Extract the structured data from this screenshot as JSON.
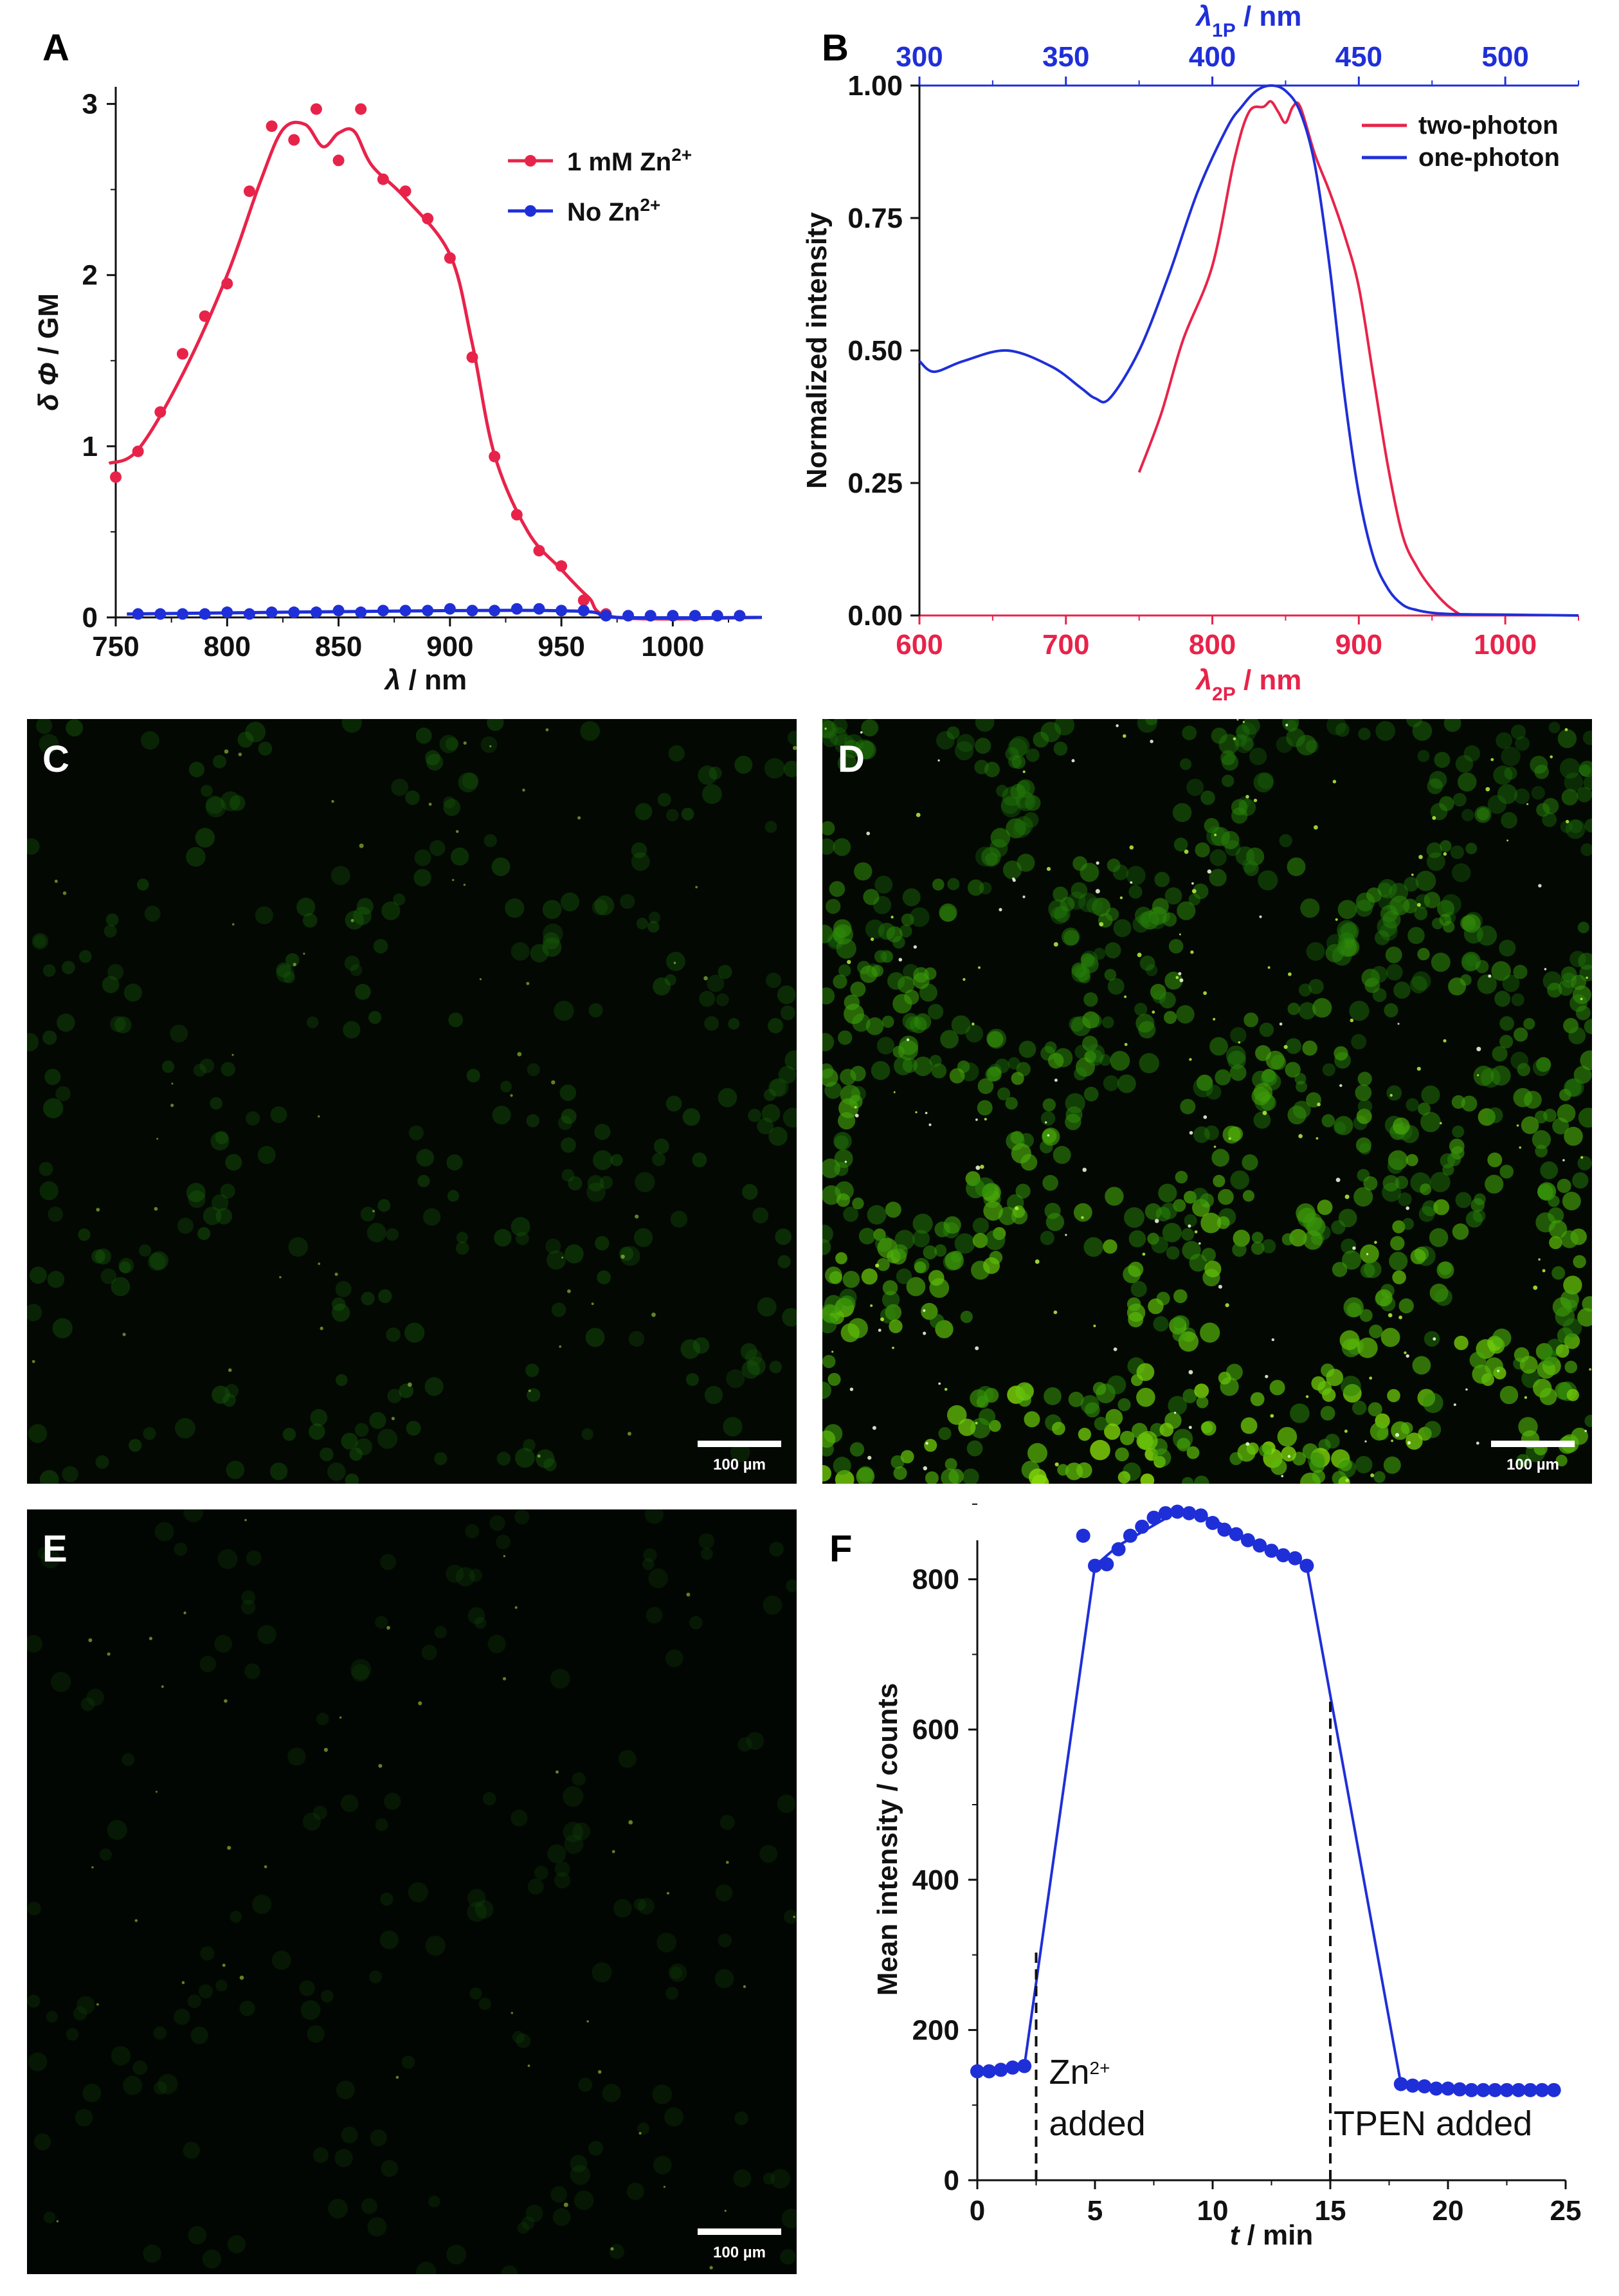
{
  "colors": {
    "red": "#e8234a",
    "blue": "#1f2fd8",
    "black": "#111111",
    "micro_bg": "#040a02",
    "micro_green": "#6fd61c",
    "micro_green_bright": "#b4f03a"
  },
  "panels": {
    "A": "A",
    "B": "B",
    "C": "C",
    "D": "D",
    "E": "E",
    "F": "F"
  },
  "micro": {
    "C": {
      "scale_label": "100 µm",
      "brightness": 0.25
    },
    "D": {
      "scale_label": "100 µm",
      "brightness": 0.85
    },
    "E": {
      "scale_label": "100 µm",
      "brightness": 0.04
    }
  },
  "chart_data": [
    {
      "id": "A",
      "type": "line",
      "xlabel": "λ / nm",
      "ylabel": "δ Φ / GM",
      "xlim": [
        750,
        1040
      ],
      "ylim": [
        0,
        3.1
      ],
      "xticks": [
        750,
        800,
        850,
        900,
        950,
        1000
      ],
      "xtick_labels": [
        "750",
        "800",
        "850",
        "900",
        "950",
        "1000"
      ],
      "yticks": [
        0,
        1,
        2,
        3
      ],
      "ytick_labels": [
        "0",
        "1",
        "2",
        "3"
      ],
      "legend_position": "top-right",
      "series": [
        {
          "name": "1 mM Zn2+",
          "legend_main": "1 mM Zn",
          "legend_sup": "2+",
          "color": "#e8234a",
          "x": [
            750,
            760,
            770,
            780,
            790,
            800,
            810,
            820,
            830,
            840,
            850,
            860,
            870,
            880,
            890,
            900,
            910,
            920,
            930,
            940,
            950,
            960,
            970,
            980,
            990,
            1000,
            1010,
            1020,
            1030
          ],
          "values": [
            0.82,
            0.97,
            1.2,
            1.54,
            1.76,
            1.95,
            2.49,
            2.87,
            2.79,
            2.97,
            2.67,
            2.97,
            2.56,
            2.49,
            2.33,
            2.1,
            1.52,
            0.94,
            0.6,
            0.39,
            0.3,
            0.1,
            0.02,
            0.01,
            0.01,
            0.01,
            0.01,
            0.01,
            0.01
          ],
          "fit_x": [
            747,
            760,
            780,
            800,
            815,
            825,
            835,
            843,
            850,
            857,
            865,
            880,
            900,
            910,
            920,
            935,
            950,
            962,
            975,
            1040
          ],
          "fit_y": [
            0.9,
            0.98,
            1.42,
            2.0,
            2.55,
            2.85,
            2.88,
            2.75,
            2.83,
            2.84,
            2.64,
            2.45,
            2.12,
            1.6,
            0.95,
            0.5,
            0.28,
            0.12,
            0.0,
            0.0
          ]
        },
        {
          "name": "No Zn2+",
          "legend_main": "No Zn",
          "legend_sup": "2+",
          "color": "#1f2fd8",
          "x": [
            760,
            770,
            780,
            790,
            800,
            810,
            820,
            830,
            840,
            850,
            860,
            870,
            880,
            890,
            900,
            910,
            920,
            930,
            940,
            950,
            960,
            970,
            980,
            990,
            1000,
            1010,
            1020,
            1030
          ],
          "values": [
            0.02,
            0.02,
            0.02,
            0.02,
            0.03,
            0.02,
            0.03,
            0.03,
            0.03,
            0.04,
            0.03,
            0.04,
            0.04,
            0.04,
            0.05,
            0.04,
            0.04,
            0.05,
            0.05,
            0.04,
            0.04,
            0.01,
            0.01,
            0.01,
            0.01,
            0.01,
            0.01,
            0.01
          ],
          "fit_x": [
            755,
            900,
            960,
            975,
            1040
          ],
          "fit_y": [
            0.02,
            0.04,
            0.035,
            0.0,
            0.0
          ]
        }
      ]
    },
    {
      "id": "B",
      "type": "line",
      "xlabel_bottom_main": "λ",
      "xlabel_bottom_sub": "2P",
      "xlabel_bottom_rest": " / nm",
      "xlabel_top_main": "λ",
      "xlabel_top_sub": "1P",
      "xlabel_top_rest": " / nm",
      "ylabel": "Normalized intensity",
      "xlim_bottom": [
        600,
        1050
      ],
      "xlim_top": [
        300,
        525
      ],
      "ylim": [
        0,
        1.0
      ],
      "xticks_bottom": [
        600,
        700,
        800,
        900,
        1000
      ],
      "xtick_labels_bottom": [
        "600",
        "700",
        "800",
        "900",
        "1000"
      ],
      "xticks_top": [
        300,
        350,
        400,
        450,
        500
      ],
      "xtick_labels_top": [
        "300",
        "350",
        "400",
        "450",
        "500"
      ],
      "yticks": [
        0,
        0.25,
        0.5,
        0.75,
        1.0
      ],
      "ytick_labels": [
        "0.00",
        "0.25",
        "0.50",
        "0.75",
        "1.00"
      ],
      "legend_position": "top-right",
      "series": [
        {
          "name": "two-photon",
          "color": "#e8234a",
          "axis": "bottom",
          "x": [
            750,
            765,
            780,
            800,
            815,
            825,
            835,
            840,
            845,
            850,
            855,
            860,
            870,
            880,
            890,
            900,
            910,
            920,
            930,
            940,
            950,
            960,
            970
          ],
          "values": [
            0.27,
            0.38,
            0.52,
            0.66,
            0.86,
            0.95,
            0.96,
            0.97,
            0.95,
            0.93,
            0.96,
            0.96,
            0.87,
            0.8,
            0.72,
            0.62,
            0.45,
            0.28,
            0.15,
            0.09,
            0.05,
            0.02,
            0.0
          ]
        },
        {
          "name": "one-photon",
          "color": "#1f2fd8",
          "axis": "top",
          "x": [
            300,
            305,
            315,
            330,
            345,
            355,
            360,
            365,
            375,
            385,
            395,
            405,
            410,
            415,
            420,
            425,
            430,
            435,
            440,
            445,
            450,
            455,
            460,
            465,
            470,
            475,
            480,
            490,
            510,
            525
          ],
          "values": [
            0.48,
            0.46,
            0.48,
            0.5,
            0.47,
            0.43,
            0.41,
            0.41,
            0.5,
            0.64,
            0.8,
            0.92,
            0.96,
            0.99,
            1.0,
            0.99,
            0.95,
            0.85,
            0.66,
            0.42,
            0.23,
            0.11,
            0.05,
            0.02,
            0.01,
            0.005,
            0.003,
            0.002,
            0.001,
            0.0
          ]
        }
      ]
    },
    {
      "id": "F",
      "type": "line",
      "xlabel_main": "t",
      "xlabel_rest": " / min",
      "ylabel": "Mean intensity / counts",
      "xlim": [
        0,
        25
      ],
      "ylim": [
        0,
        900
      ],
      "xticks": [
        0,
        5,
        10,
        15,
        20,
        25
      ],
      "xtick_labels": [
        "0",
        "5",
        "10",
        "15",
        "20",
        "25"
      ],
      "yticks": [
        0,
        200,
        400,
        600,
        800
      ],
      "ytick_labels": [
        "0",
        "200",
        "400",
        "600",
        "800"
      ],
      "series": [
        {
          "name": "mean intensity",
          "color": "#1f2fd8",
          "x": [
            0,
            0.5,
            1,
            1.5,
            2,
            4.5,
            5,
            5.5,
            6,
            6.5,
            7,
            7.5,
            8,
            8.5,
            9,
            9.5,
            10,
            10.5,
            11,
            11.5,
            12,
            12.5,
            13,
            13.5,
            14,
            18,
            18.5,
            19,
            19.5,
            20,
            20.5,
            21,
            21.5,
            22,
            22.5,
            23,
            23.5,
            24,
            24.5
          ],
          "values": [
            145,
            145,
            147,
            150,
            152,
            858,
            818,
            820,
            840,
            858,
            870,
            882,
            888,
            890,
            888,
            885,
            875,
            866,
            860,
            852,
            845,
            838,
            832,
            828,
            818,
            128,
            126,
            125,
            122,
            122,
            121,
            120,
            120,
            120,
            120,
            120,
            120,
            120,
            120
          ]
        }
      ],
      "line_path": {
        "x": [
          0,
          2,
          5,
          6,
          8.5,
          10,
          12,
          14,
          18,
          20,
          24.5
        ],
        "values": [
          145,
          152,
          818,
          845,
          890,
          880,
          845,
          818,
          128,
          122,
          120
        ]
      },
      "markers": [
        {
          "x": 2.5,
          "value": 310,
          "label_main": "Zn",
          "label_sup": "2+",
          "label_line2": "added"
        },
        {
          "x": 15,
          "value": 640,
          "label_main": "TPEN added",
          "label_sup": "",
          "label_line2": ""
        }
      ]
    }
  ]
}
